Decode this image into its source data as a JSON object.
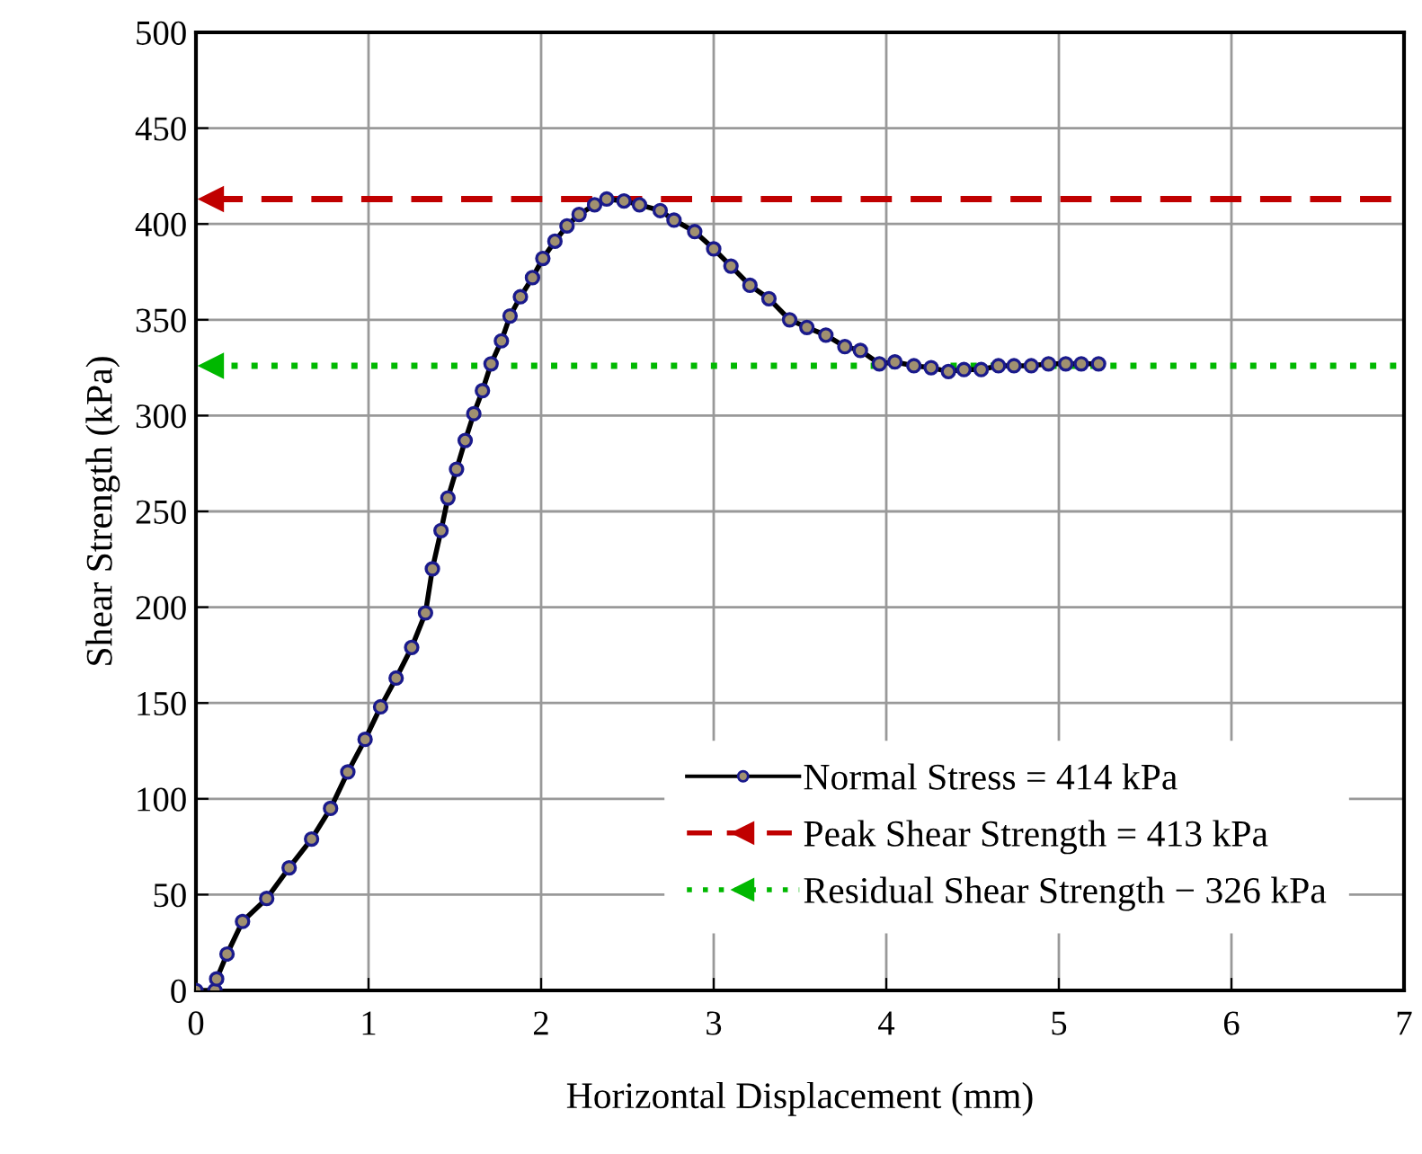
{
  "chart_data": {
    "type": "line",
    "xlabel": "Horizontal Displacement (mm)",
    "ylabel": "Shear Strength (kPa)",
    "xlim": [
      0,
      7
    ],
    "xticks": [
      0,
      1,
      2,
      3,
      4,
      5,
      6,
      7
    ],
    "ylim": [
      0,
      500
    ],
    "yticks": [
      0,
      50,
      100,
      150,
      200,
      250,
      300,
      350,
      400,
      450,
      500
    ],
    "grid": true,
    "legend": "bottom right",
    "marker": "circle",
    "line_style": "solid",
    "series": [
      {
        "name": "Normal Stress = 414 kPa",
        "color": "#000000",
        "x": [
          0,
          0.11,
          0.12,
          0.18,
          0.27,
          0.41,
          0.54,
          0.67,
          0.78,
          0.88,
          0.98,
          1.07,
          1.16,
          1.25,
          1.33,
          1.37,
          1.42,
          1.46,
          1.51,
          1.56,
          1.61,
          1.66,
          1.71,
          1.77,
          1.82,
          1.88,
          1.95,
          2.01,
          2.08,
          2.15,
          2.22,
          2.31,
          2.38,
          2.48,
          2.57,
          2.69,
          2.77,
          2.89,
          3.0,
          3.1,
          3.21,
          3.32,
          3.44,
          3.54,
          3.65,
          3.76,
          3.85,
          3.96,
          4.05,
          4.16,
          4.26,
          4.36,
          4.45,
          4.55,
          4.65,
          4.74,
          4.84,
          4.94,
          5.04,
          5.13,
          5.23
        ],
        "values": [
          0,
          0,
          6,
          19,
          36,
          48,
          64,
          79,
          95,
          114,
          131,
          148,
          163,
          179,
          197,
          220,
          240,
          257,
          272,
          287,
          301,
          313,
          327,
          339,
          352,
          362,
          372,
          382,
          391,
          399,
          405,
          410,
          413,
          412,
          410,
          407,
          402,
          396,
          387,
          378,
          368,
          361,
          350,
          346,
          342,
          336,
          334,
          327,
          328,
          326,
          325,
          323,
          324,
          324,
          326,
          326,
          326,
          327,
          327,
          327,
          327
        ]
      }
    ],
    "ref_lines": [
      {
        "axis": "y",
        "value": 413,
        "label": "Peak Shear Strength = 413 kPa",
        "color": "#c00000",
        "line_style": "dashed"
      },
      {
        "axis": "y",
        "value": 326,
        "label": "Residual Shear Strength − 326 kPa",
        "color": "#00b800",
        "line_style": "dotted"
      }
    ]
  }
}
